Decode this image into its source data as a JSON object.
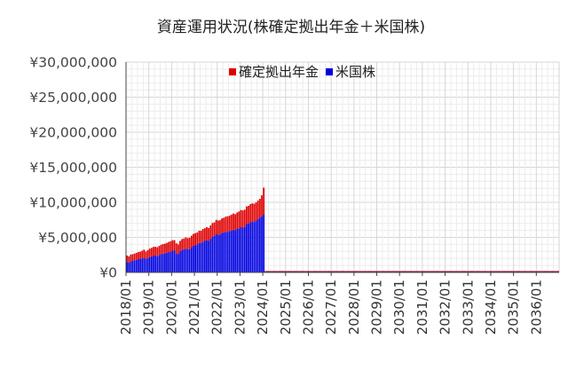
{
  "chart_data": {
    "type": "bar",
    "stacked": true,
    "title": "資産運用状況(株確定拠出年金＋米国株)",
    "ylim": [
      0,
      30000000
    ],
    "y_ticks": [
      "¥30,000,000",
      "¥25,000,000",
      "¥20,000,000",
      "¥15,000,000",
      "¥10,000,000",
      "¥5,000,000",
      "¥0"
    ],
    "y_tick_values": [
      30000000,
      25000000,
      20000000,
      15000000,
      10000000,
      5000000,
      0
    ],
    "x_ticks": [
      "2018/01",
      "2019/01",
      "2020/01",
      "2021/01",
      "2022/01",
      "2023/01",
      "2024/01",
      "2025/01",
      "2026/01",
      "2027/01",
      "2028/01",
      "2029/01",
      "2030/01",
      "2031/01",
      "2032/01",
      "2033/01",
      "2034/01",
      "2035/01",
      "2036/01"
    ],
    "legend_position": "top",
    "grid": true,
    "x_start": "2018/01",
    "months_total": 228,
    "series": [
      {
        "name": "確定拠出年金",
        "color": "#e00000",
        "values": [
          900000,
          900000,
          950000,
          900000,
          1000000,
          1000000,
          1000000,
          1050000,
          1100000,
          1150000,
          1100000,
          1150000,
          1200000,
          1200000,
          1250000,
          1250000,
          1300000,
          1300000,
          1350000,
          1350000,
          1400000,
          1400000,
          1450000,
          1450000,
          1500000,
          1500000,
          1450000,
          1400000,
          1500000,
          1550000,
          1550000,
          1600000,
          1600000,
          1650000,
          1650000,
          1700000,
          1700000,
          1700000,
          1750000,
          1750000,
          1800000,
          1800000,
          1850000,
          1850000,
          1900000,
          1950000,
          1950000,
          2000000,
          2000000,
          2050000,
          2100000,
          2100000,
          2150000,
          2200000,
          2200000,
          2250000,
          2300000,
          2300000,
          2350000,
          2400000,
          2400000,
          2450000,
          2450000,
          2500000,
          2500000,
          2550000,
          2550000,
          2600000,
          2600000,
          2650000,
          2700000,
          3000000,
          3800000,
          0,
          0,
          0,
          0,
          0,
          0,
          0,
          0,
          0,
          0,
          0,
          0,
          0,
          0,
          0,
          0,
          0,
          0,
          0,
          0,
          0,
          0,
          0,
          0,
          0,
          0,
          0,
          0,
          0,
          0,
          0,
          0,
          0,
          0,
          0,
          0,
          0,
          0,
          0,
          0,
          0,
          0,
          0,
          0,
          0,
          0,
          0,
          0,
          0,
          0,
          0,
          0,
          0,
          0,
          0,
          0,
          0,
          0,
          0,
          0,
          0,
          0,
          0,
          0,
          0,
          0,
          0,
          0,
          0,
          0,
          0,
          0,
          0,
          0,
          0,
          0,
          0,
          0,
          0,
          0,
          0,
          0,
          0,
          0,
          0,
          0,
          0,
          0,
          0,
          0,
          0,
          0,
          0,
          0,
          0,
          0,
          0,
          0,
          0,
          0,
          0,
          0,
          0,
          0,
          0,
          0,
          0,
          0,
          0,
          0,
          0,
          0,
          0,
          0,
          0,
          0,
          0,
          0,
          0,
          0,
          0,
          0,
          0,
          0,
          0,
          0,
          0,
          0,
          0,
          0,
          0,
          0,
          0,
          0,
          0,
          0,
          0,
          0,
          0,
          0,
          0,
          0,
          0,
          0,
          0,
          0,
          0,
          0,
          0,
          0,
          0,
          0,
          0,
          0,
          0,
          0,
          0,
          0,
          0,
          0,
          0,
          0,
          0,
          0,
          0,
          0,
          0,
          0,
          0,
          0,
          0,
          0,
          0,
          0,
          0,
          0,
          0
        ]
      },
      {
        "name": "米国株",
        "color": "#0000e0",
        "values": [
          1500000,
          1400000,
          1600000,
          1700000,
          1700000,
          1800000,
          1900000,
          1900000,
          2000000,
          2100000,
          1900000,
          2050000,
          2200000,
          2300000,
          2400000,
          2400000,
          2300000,
          2500000,
          2600000,
          2700000,
          2700000,
          2800000,
          2900000,
          3000000,
          3100000,
          3100000,
          2700000,
          2600000,
          3000000,
          3200000,
          3300000,
          3400000,
          3300000,
          3300000,
          3600000,
          3800000,
          3900000,
          4000000,
          4200000,
          4200000,
          4400000,
          4500000,
          4600000,
          4500000,
          4800000,
          5100000,
          5200000,
          5500000,
          5400000,
          5400000,
          5600000,
          5700000,
          5800000,
          5800000,
          5900000,
          6000000,
          6100000,
          6000000,
          6200000,
          6300000,
          6500000,
          6400000,
          6500000,
          6900000,
          7000000,
          7200000,
          7300000,
          7200000,
          7400000,
          7600000,
          7800000,
          8000000,
          8300000,
          0,
          0,
          0,
          0,
          0,
          0,
          0,
          0,
          0,
          0,
          0,
          0,
          0,
          0,
          0,
          0,
          0,
          0,
          0,
          0,
          0,
          0,
          0,
          0,
          0,
          0,
          0,
          0,
          0,
          0,
          0,
          0,
          0,
          0,
          0,
          0,
          0,
          0,
          0,
          0,
          0,
          0,
          0,
          0,
          0,
          0,
          0,
          0,
          0,
          0,
          0,
          0,
          0,
          0,
          0,
          0,
          0,
          0,
          0,
          0,
          0,
          0,
          0,
          0,
          0,
          0,
          0,
          0,
          0,
          0,
          0,
          0,
          0,
          0,
          0,
          0,
          0,
          0,
          0,
          0,
          0,
          0,
          0,
          0,
          0,
          0,
          0,
          0,
          0,
          0,
          0,
          0,
          0,
          0,
          0,
          0,
          0,
          0,
          0,
          0,
          0,
          0,
          0,
          0,
          0,
          0,
          0,
          0,
          0,
          0,
          0,
          0,
          0,
          0,
          0,
          0,
          0,
          0,
          0,
          0,
          0,
          0,
          0,
          0,
          0,
          0,
          0,
          0,
          0,
          0,
          0,
          0,
          0,
          0,
          0,
          0,
          0,
          0,
          0,
          0,
          0,
          0,
          0,
          0,
          0,
          0,
          0,
          0,
          0,
          0,
          0,
          0,
          0,
          0,
          0,
          0,
          0,
          0,
          0,
          0,
          0,
          0,
          0,
          0,
          0,
          0,
          0,
          0,
          0,
          0,
          0,
          0,
          0,
          0,
          0,
          0,
          0
        ]
      }
    ]
  }
}
